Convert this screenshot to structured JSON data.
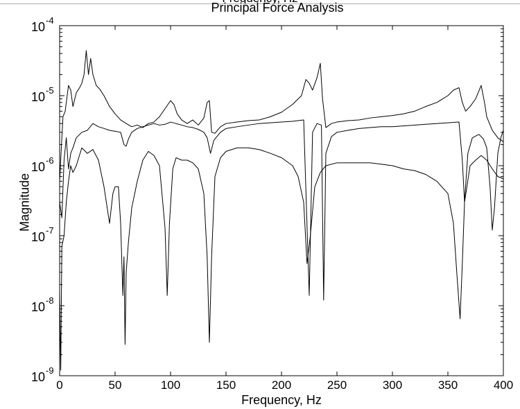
{
  "chart_data": {
    "type": "line",
    "cut_off_top_text": "Frequency, Hz",
    "title": "Principal Force Analysis",
    "xlabel": "Frequency, Hz",
    "ylabel": "Magnitude",
    "xlim": [
      0,
      400
    ],
    "ylim": [
      1e-09,
      0.0001
    ],
    "yscale": "log",
    "grid": false,
    "line_color": "#000000",
    "x_ticks": [
      0,
      50,
      100,
      150,
      200,
      250,
      300,
      350,
      400
    ],
    "y_ticks": [
      {
        "value": 1e-09,
        "base": "10",
        "exp": "-9"
      },
      {
        "value": 1e-08,
        "base": "10",
        "exp": "-8"
      },
      {
        "value": 1e-07,
        "base": "10",
        "exp": "-7"
      },
      {
        "value": 1e-06,
        "base": "10",
        "exp": "-6"
      },
      {
        "value": 1e-05,
        "base": "10",
        "exp": "-5"
      },
      {
        "value": 0.0001,
        "base": "10",
        "exp": "-4"
      }
    ],
    "series": [
      {
        "points": [
          [
            0,
            6e-07
          ],
          [
            3,
            5e-06
          ],
          [
            5,
            6e-06
          ],
          [
            8,
            1.4e-05
          ],
          [
            10,
            1.2e-05
          ],
          [
            12,
            7e-06
          ],
          [
            15,
            1.1e-05
          ],
          [
            18,
            1.3e-05
          ],
          [
            20,
            1.5e-05
          ],
          [
            22,
            2e-05
          ],
          [
            24,
            4.4e-05
          ],
          [
            26,
            2e-05
          ],
          [
            28,
            3.4e-05
          ],
          [
            30,
            2e-05
          ],
          [
            33,
            1.4e-05
          ],
          [
            36,
            1.25e-05
          ],
          [
            40,
            1e-05
          ],
          [
            45,
            7e-06
          ],
          [
            50,
            5.5e-06
          ],
          [
            55,
            4.5e-06
          ],
          [
            60,
            4e-06
          ],
          [
            65,
            3.6e-06
          ],
          [
            70,
            3.8e-06
          ],
          [
            75,
            3.5e-06
          ],
          [
            80,
            4e-06
          ],
          [
            85,
            4.2e-06
          ],
          [
            90,
            5e-06
          ],
          [
            95,
            6.5e-06
          ],
          [
            100,
            8.5e-06
          ],
          [
            103,
            7.5e-06
          ],
          [
            106,
            5.5e-06
          ],
          [
            110,
            4.5e-06
          ],
          [
            115,
            4e-06
          ],
          [
            120,
            4.5e-06
          ],
          [
            125,
            3.8e-06
          ],
          [
            130,
            4.8e-06
          ],
          [
            133,
            8e-06
          ],
          [
            135,
            8.5e-06
          ],
          [
            137,
            3e-06
          ],
          [
            140,
            2.9e-06
          ],
          [
            145,
            3.6e-06
          ],
          [
            150,
            4e-06
          ],
          [
            160,
            4.2e-06
          ],
          [
            170,
            4.4e-06
          ],
          [
            180,
            4.5e-06
          ],
          [
            190,
            5e-06
          ],
          [
            200,
            5.8e-06
          ],
          [
            210,
            7.5e-06
          ],
          [
            218,
            1e-05
          ],
          [
            222,
            1.7e-05
          ],
          [
            225,
            1.5e-05
          ],
          [
            228,
            1.2e-05
          ],
          [
            232,
            1.8e-05
          ],
          [
            235,
            2.9e-05
          ],
          [
            237,
            9e-06
          ],
          [
            240,
            3.5e-06
          ],
          [
            245,
            4e-06
          ],
          [
            250,
            4.2e-06
          ],
          [
            260,
            4.4e-06
          ],
          [
            270,
            4.5e-06
          ],
          [
            280,
            4.8e-06
          ],
          [
            290,
            5e-06
          ],
          [
            300,
            5.2e-06
          ],
          [
            310,
            5.5e-06
          ],
          [
            320,
            6e-06
          ],
          [
            330,
            7e-06
          ],
          [
            340,
            8e-06
          ],
          [
            350,
            1e-05
          ],
          [
            355,
            1.2e-05
          ],
          [
            360,
            1.3e-05
          ],
          [
            363,
            8e-06
          ],
          [
            366,
            6e-06
          ],
          [
            370,
            7e-06
          ],
          [
            375,
            9e-06
          ],
          [
            380,
            1.4e-05
          ],
          [
            383,
            8e-06
          ],
          [
            385,
            5e-06
          ],
          [
            390,
            3.2e-06
          ],
          [
            395,
            2.5e-06
          ],
          [
            400,
            2.2e-06
          ]
        ]
      },
      {
        "points": [
          [
            0,
            3e-07
          ],
          [
            2,
            1.8e-07
          ],
          [
            4,
            1.2e-06
          ],
          [
            6,
            2.5e-06
          ],
          [
            8,
            9e-07
          ],
          [
            10,
            1.5e-06
          ],
          [
            12,
            1.8e-06
          ],
          [
            15,
            2.5e-06
          ],
          [
            20,
            3e-06
          ],
          [
            25,
            3.2e-06
          ],
          [
            30,
            4e-06
          ],
          [
            35,
            3.6e-06
          ],
          [
            40,
            3.4e-06
          ],
          [
            45,
            3.2e-06
          ],
          [
            50,
            3.1e-06
          ],
          [
            55,
            3e-06
          ],
          [
            58,
            2e-06
          ],
          [
            60,
            1.9e-06
          ],
          [
            62,
            2.4e-06
          ],
          [
            65,
            3e-06
          ],
          [
            70,
            3.4e-06
          ],
          [
            75,
            3.6e-06
          ],
          [
            80,
            3.8e-06
          ],
          [
            85,
            4e-06
          ],
          [
            90,
            3.8e-06
          ],
          [
            95,
            3.9e-06
          ],
          [
            100,
            4.2e-06
          ],
          [
            105,
            4e-06
          ],
          [
            110,
            3.8e-06
          ],
          [
            115,
            3.6e-06
          ],
          [
            120,
            3.5e-06
          ],
          [
            125,
            3.3e-06
          ],
          [
            130,
            3e-06
          ],
          [
            133,
            2.5e-06
          ],
          [
            136,
            1.5e-06
          ],
          [
            139,
            2.3e-06
          ],
          [
            145,
            3e-06
          ],
          [
            150,
            3.4e-06
          ],
          [
            160,
            3.6e-06
          ],
          [
            170,
            3.8e-06
          ],
          [
            180,
            4e-06
          ],
          [
            190,
            4.1e-06
          ],
          [
            200,
            4.2e-06
          ],
          [
            210,
            4.3e-06
          ],
          [
            220,
            4.5e-06
          ],
          [
            225,
            1.4e-08
          ],
          [
            228,
            3e-06
          ],
          [
            232,
            4e-06
          ],
          [
            236,
            3.8e-06
          ],
          [
            238,
            1.2e-08
          ],
          [
            240,
            1.5e-06
          ],
          [
            245,
            2.6e-06
          ],
          [
            250,
            3e-06
          ],
          [
            260,
            3.2e-06
          ],
          [
            270,
            3.4e-06
          ],
          [
            280,
            3.5e-06
          ],
          [
            290,
            3.6e-06
          ],
          [
            300,
            3.6e-06
          ],
          [
            310,
            3.7e-06
          ],
          [
            320,
            3.8e-06
          ],
          [
            330,
            3.9e-06
          ],
          [
            340,
            4e-06
          ],
          [
            350,
            4.1e-06
          ],
          [
            360,
            4.2e-06
          ],
          [
            363,
            1.2e-06
          ],
          [
            365,
            3e-07
          ],
          [
            368,
            1.5e-06
          ],
          [
            372,
            2.5e-06
          ],
          [
            378,
            2.8e-06
          ],
          [
            382,
            2.4e-06
          ],
          [
            385,
            1.8e-06
          ],
          [
            388,
            5e-07
          ],
          [
            390,
            1.2e-07
          ],
          [
            392,
            2.5e-07
          ],
          [
            395,
            1.5e-06
          ],
          [
            398,
            2.6e-06
          ],
          [
            400,
            3.2e-06
          ]
        ]
      },
      {
        "points": [
          [
            0,
            1.6e-08
          ],
          [
            1,
            1.2e-09
          ],
          [
            2,
            7e-08
          ],
          [
            4,
            1e-07
          ],
          [
            6,
            3e-07
          ],
          [
            8,
            6e-07
          ],
          [
            10,
            1e-06
          ],
          [
            12,
            8e-07
          ],
          [
            15,
            1e-06
          ],
          [
            20,
            1.8e-06
          ],
          [
            25,
            1.5e-06
          ],
          [
            30,
            1.7e-06
          ],
          [
            35,
            1.2e-06
          ],
          [
            40,
            5e-07
          ],
          [
            45,
            1.5e-07
          ],
          [
            48,
            4e-07
          ],
          [
            50,
            5e-07
          ],
          [
            53,
            5e-07
          ],
          [
            55,
            1.5e-07
          ],
          [
            57,
            1.4e-08
          ],
          [
            58,
            5e-08
          ],
          [
            59,
            2.8e-09
          ],
          [
            60,
            3e-08
          ],
          [
            62,
            8e-08
          ],
          [
            65,
            2.5e-07
          ],
          [
            70,
            6e-07
          ],
          [
            75,
            1.2e-06
          ],
          [
            80,
            1.6e-06
          ],
          [
            85,
            1.4e-06
          ],
          [
            90,
            1e-06
          ],
          [
            95,
            1.3e-07
          ],
          [
            97,
            1.4e-08
          ],
          [
            99,
            1.5e-07
          ],
          [
            102,
            9e-07
          ],
          [
            105,
            1.3e-06
          ],
          [
            110,
            1.2e-06
          ],
          [
            115,
            1.2e-06
          ],
          [
            120,
            1.1e-06
          ],
          [
            125,
            9e-07
          ],
          [
            130,
            4e-07
          ],
          [
            133,
            5e-08
          ],
          [
            135,
            3e-09
          ],
          [
            137,
            5e-08
          ],
          [
            140,
            7e-07
          ],
          [
            145,
            1.3e-06
          ],
          [
            150,
            1.6e-06
          ],
          [
            160,
            1.8e-06
          ],
          [
            170,
            1.8e-06
          ],
          [
            180,
            1.7e-06
          ],
          [
            190,
            1.5e-06
          ],
          [
            200,
            1.3e-06
          ],
          [
            210,
            1e-06
          ],
          [
            215,
            7e-07
          ],
          [
            220,
            3e-07
          ],
          [
            223,
            4e-08
          ],
          [
            226,
            1e-07
          ],
          [
            230,
            5e-07
          ],
          [
            235,
            8e-07
          ],
          [
            240,
            1e-06
          ],
          [
            250,
            1.1e-06
          ],
          [
            260,
            1.1e-06
          ],
          [
            270,
            1.1e-06
          ],
          [
            280,
            1.1e-06
          ],
          [
            290,
            1.05e-06
          ],
          [
            300,
            1e-06
          ],
          [
            310,
            9e-07
          ],
          [
            320,
            8.5e-07
          ],
          [
            330,
            7.5e-07
          ],
          [
            340,
            6e-07
          ],
          [
            350,
            4e-07
          ],
          [
            355,
            1.5e-07
          ],
          [
            358,
            3e-08
          ],
          [
            361,
            6.5e-09
          ],
          [
            363,
            4e-08
          ],
          [
            365,
            3e-07
          ],
          [
            370,
            1e-06
          ],
          [
            375,
            1.2e-06
          ],
          [
            380,
            1.4e-06
          ],
          [
            385,
            1.2e-06
          ],
          [
            390,
            9e-07
          ],
          [
            395,
            7e-07
          ],
          [
            400,
            6.5e-07
          ]
        ]
      }
    ]
  }
}
